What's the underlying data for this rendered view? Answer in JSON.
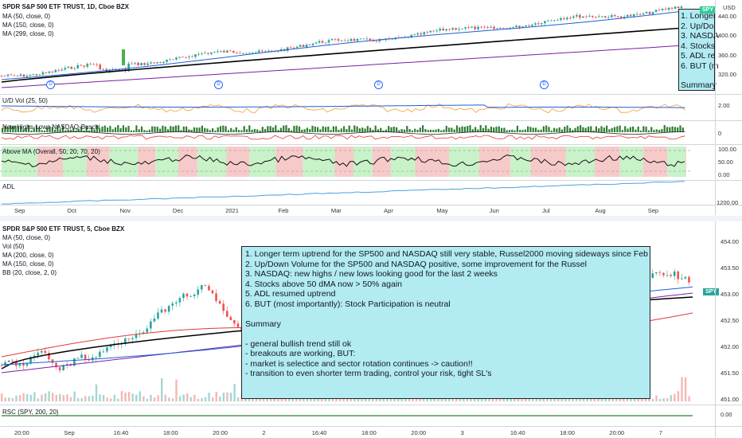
{
  "top": {
    "title": "SPDR S&P 500 ETF TRUST, 1D, Cboe BZX",
    "overlays": [
      "MA (50, close, 0)",
      "MA (150, close, 0)",
      "MA (299, close, 0)"
    ],
    "price_axis": {
      "currency": "USD",
      "ticks": [
        "440.00",
        "400.00",
        "360.00",
        "320.00"
      ]
    },
    "symbol_badge": "SPY",
    "dividend_marker": "D",
    "panes": {
      "updown": {
        "label": "U/D Vol (25, 50)",
        "tick": "2.00"
      },
      "highs_lows": {
        "label": "New Highs-Lows NASDAQ-Buschi",
        "tick": "0"
      },
      "above_ma": {
        "label": "Above MA (Overall, 50, 20, 70, 20)",
        "ticks": [
          "100.00",
          "50.00",
          "0.00"
        ]
      },
      "adl": {
        "label": "ADL",
        "tick": "1200.00"
      }
    },
    "time_axis": [
      "Sep",
      "Oct",
      "Nov",
      "Dec",
      "2021",
      "Feb",
      "Mar",
      "Apr",
      "May",
      "Jun",
      "Jul",
      "Aug",
      "Sep"
    ],
    "annotation_lines": [
      "1. Longer",
      "2. Up/Do",
      "3. NASDA",
      "4. Stocks",
      "5. ADL re",
      "6. BUT (m",
      "",
      "Summary"
    ]
  },
  "bottom": {
    "title": "SPDR S&P 500 ETF TRUST, 5, Cboe BZX",
    "overlays": [
      "MA (50, close, 0)",
      "Vol (50)",
      "MA (200, close, 0)",
      "MA (150, close, 0)",
      "BB (20, close, 2, 0)"
    ],
    "price_axis": {
      "ticks": [
        "454.00",
        "453.50",
        "453.00",
        "452.50",
        "452.00",
        "451.50",
        "451.00"
      ]
    },
    "symbol_badge": "SPY",
    "rsc": {
      "label": "RSC (SPY, 200, 20)",
      "tick": "0.00"
    },
    "time_axis": [
      "20:00",
      "Sep",
      "16:40",
      "18:00",
      "20:00",
      "2",
      "16:40",
      "18:00",
      "20:00",
      "3",
      "16:40",
      "18:00",
      "20:00",
      "7"
    ]
  },
  "annotation": {
    "lines": [
      "1. Longer term uptrend for the SP500 and NASDAQ still very stable, Russel2000 moving sideways since Feb",
      "2. Up/Down Volume for the SP500 and NASDAQ positive, some improvement for the Russel",
      "3. NASDAQ: new highs / new lows looking good for the last 2 weeks",
      "4. Stocks above 50 dMA now > 50% again",
      "5. ADL resumed uptrend",
      "6. BUT (most importantly): Stock Participation is neutral",
      "",
      "Summary",
      "",
      "- general bullish trend still ok",
      "- breakouts are working, BUT:",
      "- market is selectice and sector rotation continues -> caution!!",
      "- transition to even shorter term trading, control your risk, tight SL's"
    ]
  },
  "colors": {
    "up": "#26a69a",
    "down": "#ef5350",
    "ma_blue": "#1e5fd8",
    "ma_black": "#000000",
    "ma_purple": "#7b1fa2",
    "annotation_bg": "#b2ebf2",
    "zone_green": "#c8f2c8",
    "zone_red": "#f7caca"
  }
}
